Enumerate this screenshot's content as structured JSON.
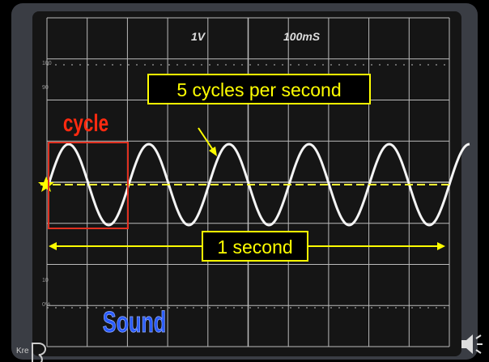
{
  "scope": {
    "volts": "1V",
    "time": "100mS",
    "scale_labels": [
      "100",
      "90",
      "10",
      "0%"
    ]
  },
  "annotations": {
    "frequency": "5 cycles per second",
    "cycle": "cycle",
    "duration": "1 second",
    "topic": "Sound"
  },
  "footer": "Kre"
}
